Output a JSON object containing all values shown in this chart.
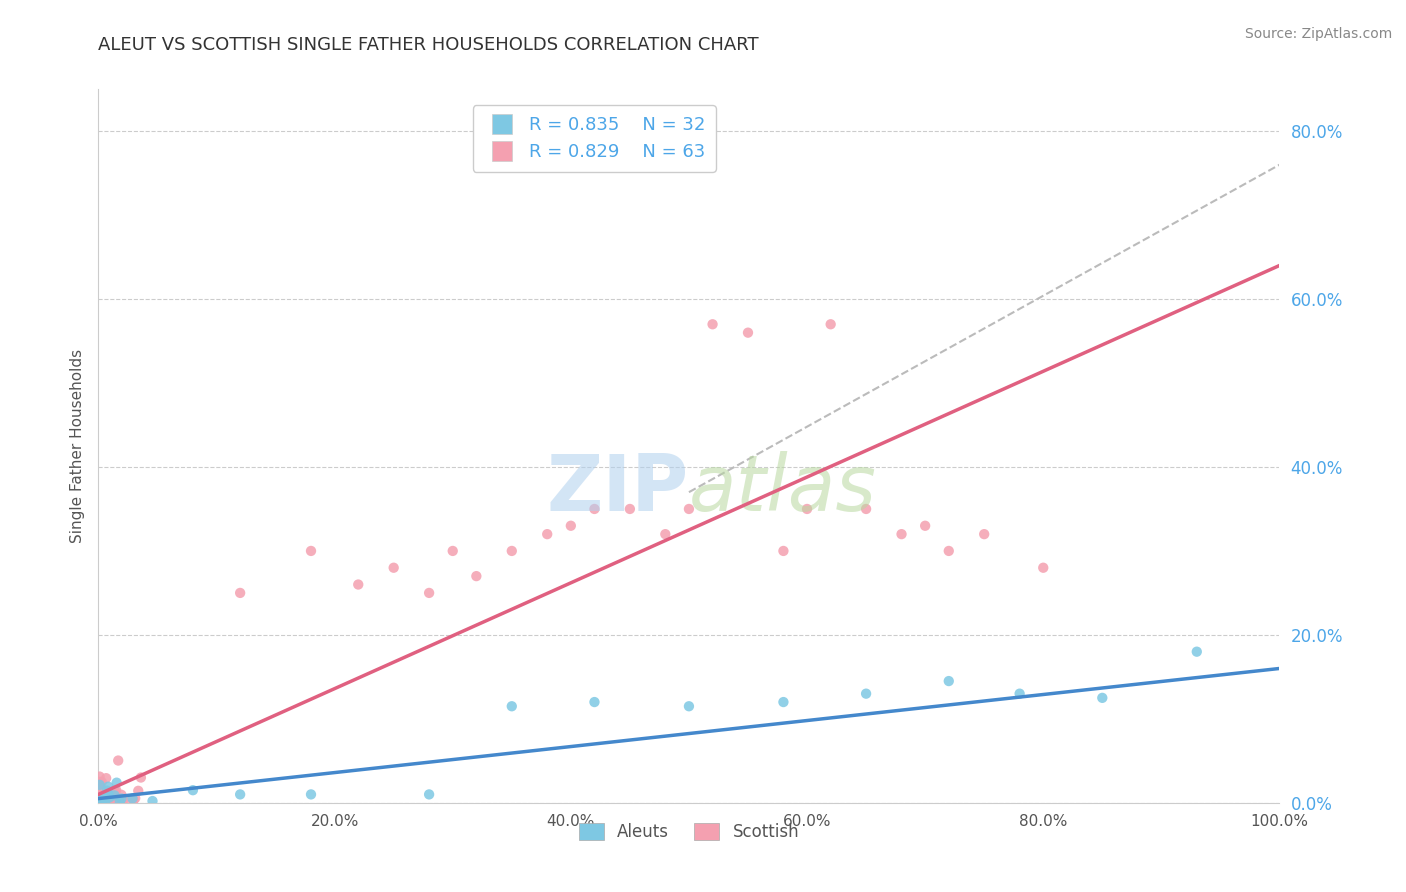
{
  "title": "ALEUT VS SCOTTISH SINGLE FATHER HOUSEHOLDS CORRELATION CHART",
  "source": "Source: ZipAtlas.com",
  "ylabel": "Single Father Households",
  "xlim": [
    0,
    1.0
  ],
  "ylim": [
    0,
    0.85
  ],
  "xticks": [
    0.0,
    0.2,
    0.4,
    0.6,
    0.8,
    1.0
  ],
  "xtick_labels": [
    "0.0%",
    "20.0%",
    "40.0%",
    "60.0%",
    "80.0%",
    "100.0%"
  ],
  "yticks": [
    0.0,
    0.2,
    0.4,
    0.6,
    0.8
  ],
  "ytick_labels": [
    "0.0%",
    "20.0%",
    "40.0%",
    "60.0%",
    "80.0%"
  ],
  "aleuts_color": "#7ec8e3",
  "scottish_color": "#f4a0b0",
  "trend_aleuts_color": "#4488cc",
  "trend_scottish_color": "#e06080",
  "dashed_line_color": "#bbbbbb",
  "background_color": "#ffffff",
  "grid_color": "#cccccc",
  "legend_R_aleuts": "R = 0.835",
  "legend_N_aleuts": "N = 32",
  "legend_R_scottish": "R = 0.829",
  "legend_N_scottish": "N = 63",
  "ytick_color": "#4da6e8",
  "xtick_color": "#555555",
  "title_color": "#333333",
  "source_color": "#888888",
  "ylabel_color": "#555555",
  "legend_text_color": "#4da6e8"
}
